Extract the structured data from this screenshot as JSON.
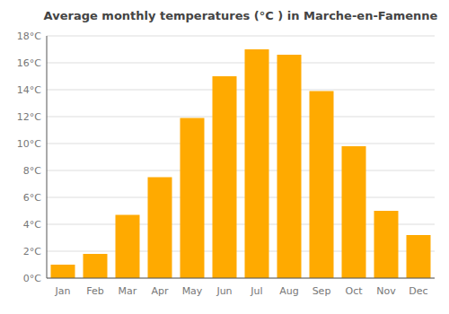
{
  "chart_data": {
    "type": "bar",
    "title": "Average monthly temperatures (°C ) in Marche-en-Famenne",
    "categories": [
      "Jan",
      "Feb",
      "Mar",
      "Apr",
      "May",
      "Jun",
      "Jul",
      "Aug",
      "Sep",
      "Oct",
      "Nov",
      "Dec"
    ],
    "values": [
      1.0,
      1.8,
      4.7,
      7.5,
      11.9,
      15.0,
      17.0,
      16.6,
      13.9,
      9.8,
      5.0,
      3.2
    ],
    "color": "#FFAA00",
    "ylim": [
      0,
      18
    ],
    "yticks": [
      {
        "value": 0,
        "label": "0°C"
      },
      {
        "value": 2,
        "label": "2°C"
      },
      {
        "value": 4,
        "label": "4°C"
      },
      {
        "value": 6,
        "label": "6°C"
      },
      {
        "value": 8,
        "label": "8°C"
      },
      {
        "value": 10,
        "label": "10°C"
      },
      {
        "value": 12,
        "label": "12°C"
      },
      {
        "value": 14,
        "label": "14°C"
      },
      {
        "value": 16,
        "label": "16°C"
      },
      {
        "value": 18,
        "label": "18°C"
      }
    ],
    "grid": true
  }
}
